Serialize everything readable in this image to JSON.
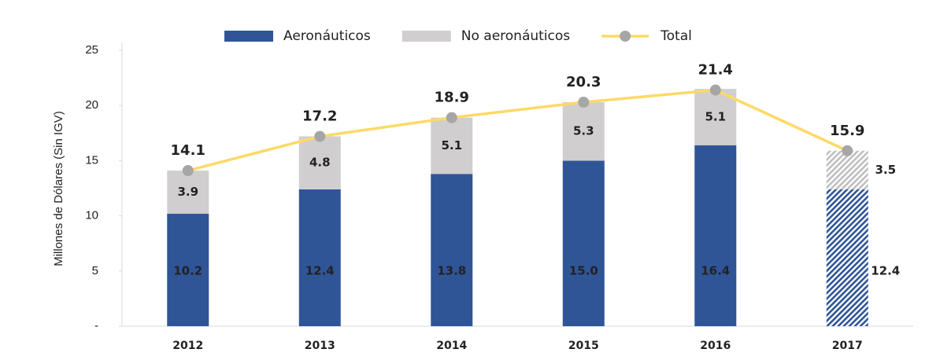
{
  "chart_data": {
    "type": "bar",
    "y_label": "Millones de Dólares (Sin IGV)",
    "categories": [
      "2012",
      "2013",
      "2014",
      "2015",
      "2016",
      "2017"
    ],
    "series": [
      {
        "name": "Aeronáuticos",
        "color": "#2f5597",
        "values": [
          10.2,
          12.4,
          13.8,
          15.0,
          16.4,
          12.4
        ],
        "value_labels": [
          "10.2",
          "12.4",
          "13.8",
          "15.0",
          "16.4",
          "12.4"
        ]
      },
      {
        "name": "No aeronáuticos",
        "color": "#d0cece",
        "values": [
          3.9,
          4.8,
          5.1,
          5.3,
          5.1,
          3.5
        ]
      },
      {
        "name": "Total",
        "type": "line",
        "color": "#ffd966",
        "marker_color": "#a6a6a6",
        "values": [
          14.1,
          17.2,
          18.9,
          20.3,
          21.4,
          15.9
        ]
      }
    ],
    "hatched": [
      false,
      false,
      false,
      false,
      false,
      true
    ],
    "ylim": [
      0,
      25
    ],
    "yticks": [
      {
        "value": 0,
        "label": "-"
      },
      5,
      10,
      15,
      20,
      25
    ],
    "legend": "top"
  }
}
